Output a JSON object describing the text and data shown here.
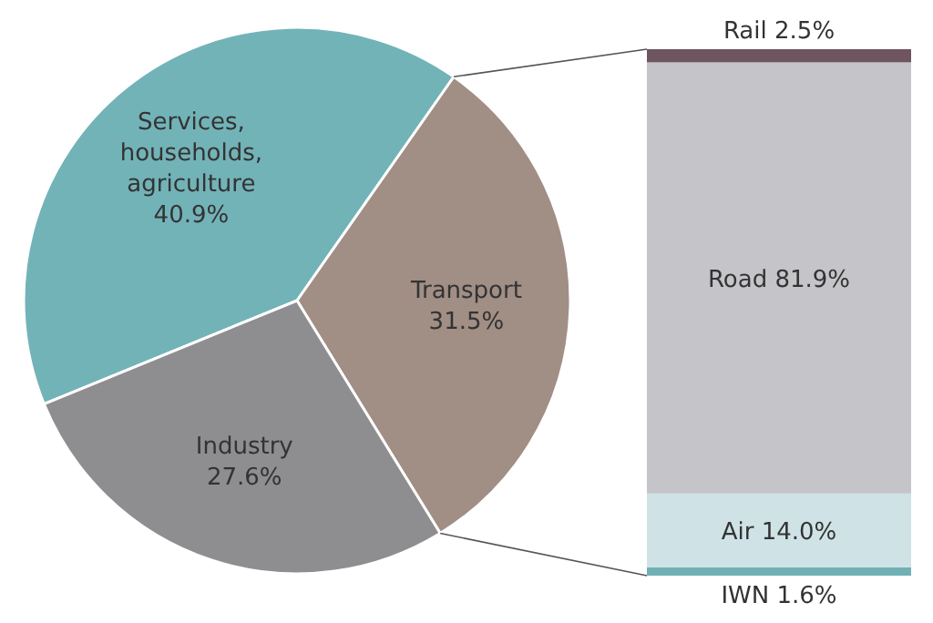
{
  "chart_data": [
    {
      "type": "pie",
      "categories": [
        "Services,\nhouseholds,\nagriculture",
        "Transport",
        "Industry"
      ],
      "values": [
        40.9,
        31.5,
        27.6
      ],
      "value_labels": [
        "40.9%",
        "31.5%",
        "27.6%"
      ],
      "colors": [
        "#72b3b8",
        "#a18e85",
        "#8e8e90"
      ]
    },
    {
      "type": "bar",
      "stacked": true,
      "categories": [
        null
      ],
      "series": [
        {
          "name": "IWN",
          "color": "#6fb0b5",
          "values": [
            1.6
          ],
          "value_labels": [
            "1.6%"
          ]
        },
        {
          "name": "Air",
          "color": "#cfe3e6",
          "values": [
            14.0
          ],
          "value_labels": [
            "14.0%"
          ]
        },
        {
          "name": "Road",
          "color": "#c5c5c9",
          "values": [
            81.9
          ],
          "value_labels": [
            "81.9%"
          ]
        },
        {
          "name": "Rail",
          "color": "#6e5560",
          "values": [
            2.5
          ],
          "value_labels": [
            "2.5%"
          ]
        }
      ]
    }
  ]
}
